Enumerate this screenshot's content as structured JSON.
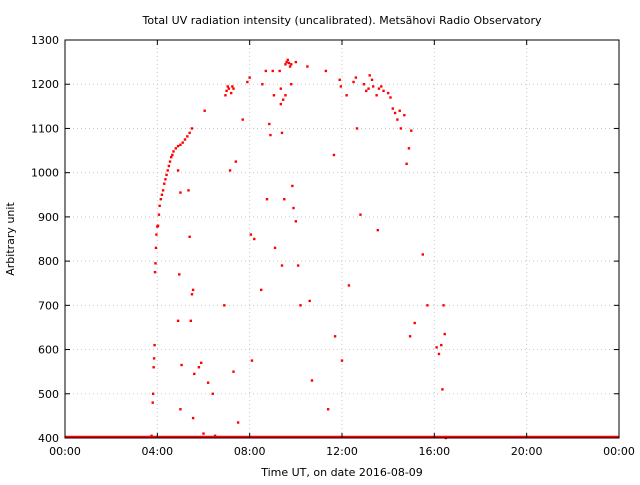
{
  "chart_data": {
    "type": "scatter",
    "title": "Total UV radiation intensity (uncalibrated). Metsähovi Radio Observatory",
    "xlabel": "Time UT, on date 2016-08-09",
    "ylabel": "Arbitrary unit",
    "xlim": [
      0,
      24
    ],
    "ylim": [
      400,
      1300
    ],
    "x_unit": "hours UT",
    "x_ticks": [
      {
        "value": 0,
        "label": "00:00"
      },
      {
        "value": 4,
        "label": "04:00"
      },
      {
        "value": 8,
        "label": "08:00"
      },
      {
        "value": 12,
        "label": "12:00"
      },
      {
        "value": 16,
        "label": "16:00"
      },
      {
        "value": 20,
        "label": "20:00"
      },
      {
        "value": 24,
        "label": "00:00"
      }
    ],
    "y_ticks": [
      400,
      500,
      600,
      700,
      800,
      900,
      1000,
      1100,
      1200,
      1300
    ],
    "grid": true,
    "legend": "none",
    "marker_color": "#ff0000",
    "baseline": {
      "y": 400,
      "x_from": 0,
      "x_to": 24
    },
    "series": [
      {
        "points": [
          [
            3.75,
            405
          ],
          [
            3.8,
            480
          ],
          [
            3.82,
            500
          ],
          [
            3.84,
            560
          ],
          [
            3.86,
            580
          ],
          [
            3.88,
            610
          ],
          [
            3.9,
            775
          ],
          [
            3.92,
            795
          ],
          [
            3.94,
            830
          ],
          [
            3.96,
            860
          ],
          [
            4.0,
            878
          ],
          [
            4.03,
            880
          ],
          [
            4.07,
            905
          ],
          [
            4.1,
            925
          ],
          [
            4.15,
            940
          ],
          [
            4.2,
            950
          ],
          [
            4.25,
            960
          ],
          [
            4.3,
            975
          ],
          [
            4.35,
            985
          ],
          [
            4.4,
            995
          ],
          [
            4.45,
            1005
          ],
          [
            4.5,
            1015
          ],
          [
            4.55,
            1025
          ],
          [
            4.6,
            1035
          ],
          [
            4.65,
            1040
          ],
          [
            4.7,
            1048
          ],
          [
            4.8,
            1055
          ],
          [
            4.9,
            1060
          ],
          [
            5.0,
            1063
          ],
          [
            5.1,
            1068
          ],
          [
            5.2,
            1075
          ],
          [
            5.3,
            1082
          ],
          [
            5.4,
            1090
          ],
          [
            5.5,
            1100
          ],
          [
            4.9,
            1005
          ],
          [
            5.0,
            955
          ],
          [
            4.95,
            770
          ],
          [
            4.9,
            665
          ],
          [
            5.0,
            465
          ],
          [
            5.05,
            565
          ],
          [
            5.35,
            960
          ],
          [
            5.4,
            855
          ],
          [
            5.5,
            725
          ],
          [
            5.55,
            735
          ],
          [
            5.45,
            665
          ],
          [
            5.6,
            545
          ],
          [
            5.55,
            445
          ],
          [
            5.8,
            560
          ],
          [
            5.9,
            570
          ],
          [
            6.0,
            410
          ],
          [
            6.05,
            1140
          ],
          [
            6.2,
            525
          ],
          [
            6.4,
            500
          ],
          [
            6.5,
            405
          ],
          [
            6.9,
            700
          ],
          [
            6.95,
            1175
          ],
          [
            7.0,
            1185
          ],
          [
            7.05,
            1195
          ],
          [
            7.1,
            1190
          ],
          [
            7.2,
            1180
          ],
          [
            7.25,
            1195
          ],
          [
            7.3,
            1190
          ],
          [
            7.15,
            1005
          ],
          [
            7.3,
            550
          ],
          [
            7.4,
            1025
          ],
          [
            7.5,
            435
          ],
          [
            7.7,
            1120
          ],
          [
            7.9,
            1205
          ],
          [
            8.0,
            1215
          ],
          [
            8.05,
            860
          ],
          [
            8.1,
            575
          ],
          [
            8.2,
            850
          ],
          [
            8.5,
            735
          ],
          [
            8.55,
            1200
          ],
          [
            8.7,
            1230
          ],
          [
            8.75,
            940
          ],
          [
            8.85,
            1110
          ],
          [
            8.9,
            1085
          ],
          [
            9.0,
            1230
          ],
          [
            9.05,
            1175
          ],
          [
            9.1,
            830
          ],
          [
            9.3,
            1230
          ],
          [
            9.35,
            1190
          ],
          [
            9.4,
            1090
          ],
          [
            9.45,
            1165
          ],
          [
            9.5,
            940
          ],
          [
            9.55,
            1245
          ],
          [
            9.6,
            1250
          ],
          [
            9.65,
            1255
          ],
          [
            9.7,
            1248
          ],
          [
            9.75,
            1240
          ],
          [
            9.8,
            1200
          ],
          [
            9.85,
            970
          ],
          [
            9.9,
            920
          ],
          [
            9.55,
            1175
          ],
          [
            9.35,
            1155
          ],
          [
            9.4,
            790
          ],
          [
            9.8,
            1245
          ],
          [
            10.0,
            1250
          ],
          [
            10.0,
            890
          ],
          [
            10.1,
            790
          ],
          [
            10.2,
            700
          ],
          [
            10.5,
            1240
          ],
          [
            10.6,
            710
          ],
          [
            10.7,
            530
          ],
          [
            11.3,
            1230
          ],
          [
            11.4,
            465
          ],
          [
            11.65,
            1040
          ],
          [
            11.7,
            630
          ],
          [
            11.9,
            1210
          ],
          [
            11.95,
            1195
          ],
          [
            12.0,
            575
          ],
          [
            12.2,
            1175
          ],
          [
            12.3,
            745
          ],
          [
            12.5,
            1205
          ],
          [
            12.6,
            1215
          ],
          [
            12.65,
            1100
          ],
          [
            12.8,
            905
          ],
          [
            12.95,
            1200
          ],
          [
            13.05,
            1185
          ],
          [
            13.15,
            1190
          ],
          [
            13.2,
            1220
          ],
          [
            13.3,
            1210
          ],
          [
            13.35,
            1195
          ],
          [
            13.5,
            1175
          ],
          [
            13.55,
            870
          ],
          [
            13.6,
            1190
          ],
          [
            13.7,
            1195
          ],
          [
            13.8,
            1185
          ],
          [
            14.0,
            1180
          ],
          [
            14.1,
            1170
          ],
          [
            14.2,
            1145
          ],
          [
            14.3,
            1135
          ],
          [
            14.4,
            1120
          ],
          [
            14.5,
            1140
          ],
          [
            14.55,
            1100
          ],
          [
            14.7,
            1130
          ],
          [
            14.8,
            1020
          ],
          [
            14.9,
            1055
          ],
          [
            15.0,
            1095
          ],
          [
            14.95,
            630
          ],
          [
            15.15,
            660
          ],
          [
            15.5,
            815
          ],
          [
            15.7,
            700
          ],
          [
            16.1,
            605
          ],
          [
            16.2,
            590
          ],
          [
            16.3,
            610
          ],
          [
            16.35,
            510
          ],
          [
            16.4,
            700
          ],
          [
            16.45,
            635
          ],
          [
            16.5,
            400
          ]
        ]
      }
    ]
  }
}
